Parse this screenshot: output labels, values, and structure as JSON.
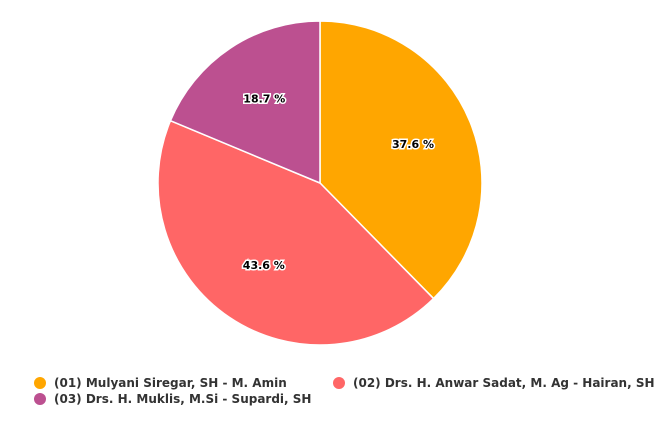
{
  "chart_data": {
    "type": "pie",
    "title": "",
    "slices": [
      {
        "name": "(01) Mulyani Siregar, SH - M. Amin",
        "value": 37.6,
        "label": "37.6 %",
        "color": "#FFA600"
      },
      {
        "name": "(02) Drs. H. Anwar Sadat, M. Ag - Hairan, SH",
        "value": 43.6,
        "label": "43.6 %",
        "color": "#FF6666"
      },
      {
        "name": "(03) Drs. H. Muklis, M.Si - Supardi, SH",
        "value": 18.7,
        "label": "18.7 %",
        "color": "#BC5090"
      }
    ],
    "start_angle": "12-o-clock",
    "direction": "clockwise",
    "legend_position": "bottom-left"
  }
}
